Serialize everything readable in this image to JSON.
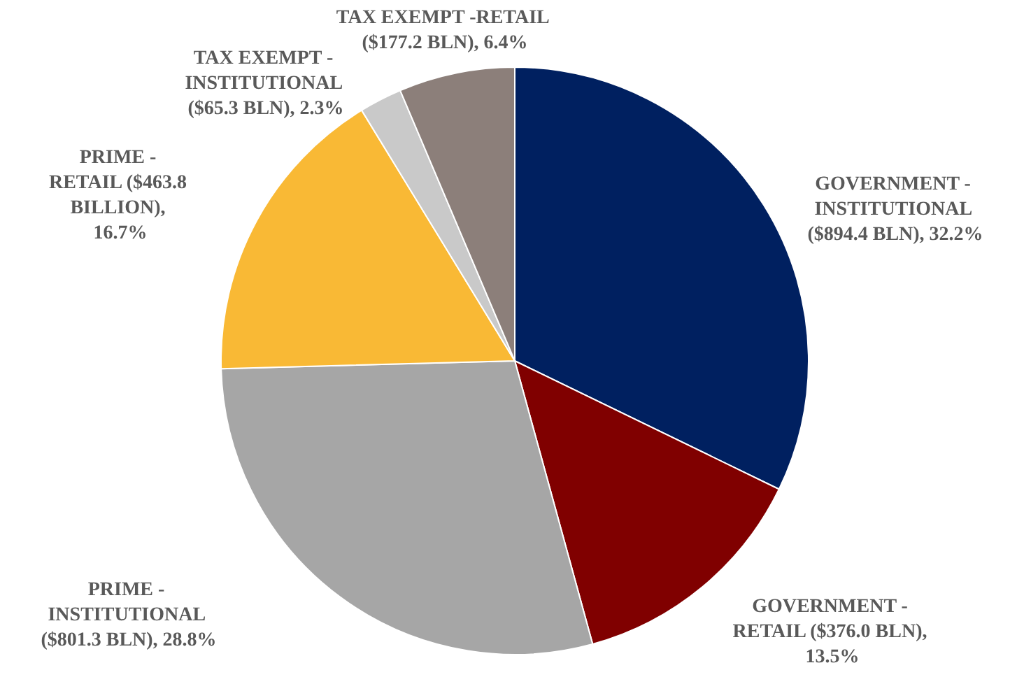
{
  "chart_data": {
    "type": "pie",
    "categories": [
      "GOVERNMENT - INSTITUTIONAL",
      "GOVERNMENT - RETAIL",
      "PRIME - INSTITUTIONAL",
      "PRIME - RETAIL",
      "TAX EXEMPT - INSTITUTIONAL",
      "TAX EXEMPT -RETAIL"
    ],
    "values": [
      894.4,
      376.0,
      801.3,
      463.8,
      65.3,
      177.2
    ],
    "value_labels": [
      "($894.4 BLN), 32.2%",
      "($376.0 BLN), 13.5%",
      "($801.3 BLN), 28.8%",
      "($463.8 BILLION), 16.7%",
      "($65.3 BLN), 2.3%",
      "($177.2 BLN), 6.4%"
    ],
    "colors": [
      "#002060",
      "#800000",
      "#a6a6a6",
      "#f9b935",
      "#c9c9c9",
      "#8c7f7a"
    ],
    "legend": false
  }
}
